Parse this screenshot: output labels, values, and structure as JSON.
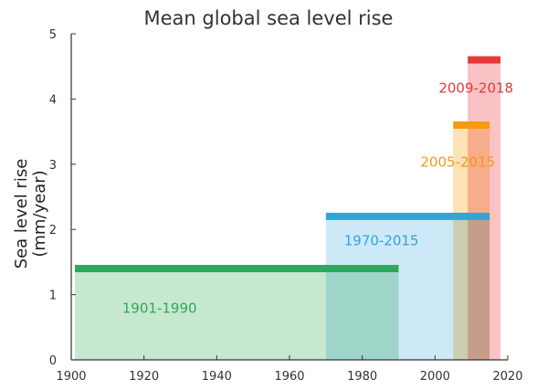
{
  "chart_data": {
    "type": "bar",
    "title": "Mean global sea level rise",
    "xlabel": "",
    "ylabel": "Sea level rise (mm/year)",
    "xlim": [
      1900,
      2020
    ],
    "ylim": [
      0,
      5
    ],
    "xticks": [
      1900,
      1920,
      1940,
      1960,
      1980,
      2000,
      2020
    ],
    "yticks": [
      0,
      1,
      2,
      3,
      4,
      5
    ],
    "grid": false,
    "periods": [
      {
        "name": "1901-1990",
        "start": 1901,
        "end": 1990,
        "value": 1.4,
        "color": "#2ea85a",
        "fill": "#c6e8cf"
      },
      {
        "name": "1970-2015",
        "start": 1970,
        "end": 2015,
        "value": 2.2,
        "color": "#31a4dc",
        "fill": "#cde9f8"
      },
      {
        "name": "2005-2015",
        "start": 2005,
        "end": 2015,
        "value": 3.6,
        "color": "#f59a11",
        "fill": "#fde2b6"
      },
      {
        "name": "2009-2018",
        "start": 2009,
        "end": 2018,
        "value": 4.6,
        "color": "#e43a39",
        "fill": "#f9c2c4"
      }
    ]
  }
}
